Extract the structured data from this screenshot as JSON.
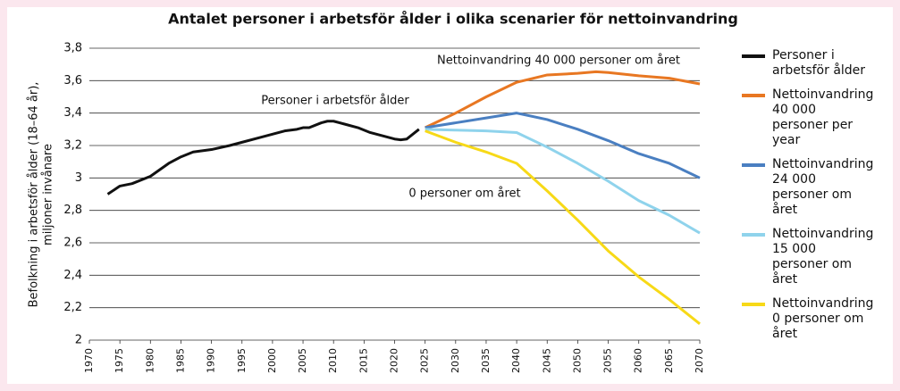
{
  "chart_data": {
    "type": "line",
    "title": "Antalet personer i arbetsför ålder i olika scenarier för nettoinvandring",
    "ylabel": [
      "Befolkning i arbetsför ålder (18–64 år),",
      "miljoner invånare"
    ],
    "annotations": [
      "Personer i arbetsför ålder",
      "Nettoinvandring 40 000 personer om året",
      "0 personer om året"
    ],
    "xlim": [
      1970,
      2070
    ],
    "xticks": [
      1970,
      1975,
      1980,
      1985,
      1990,
      1995,
      2000,
      2005,
      2010,
      2015,
      2020,
      2025,
      2030,
      2035,
      2040,
      2045,
      2050,
      2055,
      2060,
      2065,
      2070
    ],
    "ylim": [
      2,
      3.8
    ],
    "yticks": [
      {
        "value": 2,
        "label": "2"
      },
      {
        "value": 2.2,
        "label": "2,2"
      },
      {
        "value": 2.4,
        "label": "2,4"
      },
      {
        "value": 2.6,
        "label": "2,6"
      },
      {
        "value": 2.8,
        "label": "2,8"
      },
      {
        "value": 3,
        "label": "3"
      },
      {
        "value": 3.2,
        "label": "3,2"
      },
      {
        "value": 3.4,
        "label": "3,4"
      },
      {
        "value": 3.6,
        "label": "3,6"
      },
      {
        "value": 3.8,
        "label": "3,8"
      }
    ],
    "grid": true,
    "legend": "right",
    "series": [
      {
        "name": "Personer i arbetsför ålder",
        "color": "#111111",
        "x": [
          1973,
          1975,
          1977,
          1980,
          1983,
          1985,
          1987,
          1990,
          1993,
          1995,
          1998,
          2000,
          2002,
          2004,
          2005,
          2006,
          2008,
          2009,
          2010,
          2012,
          2014,
          2016,
          2018,
          2020,
          2021,
          2022,
          2024
        ],
        "values": [
          2.9,
          2.95,
          2.965,
          3.01,
          3.09,
          3.13,
          3.16,
          3.175,
          3.2,
          3.22,
          3.25,
          3.27,
          3.29,
          3.3,
          3.31,
          3.31,
          3.34,
          3.35,
          3.35,
          3.33,
          3.31,
          3.28,
          3.26,
          3.24,
          3.235,
          3.24,
          3.3
        ]
      },
      {
        "name": "Nettoinvandring 40 000 personer per year",
        "color": "#e87722",
        "x": [
          2025,
          2030,
          2035,
          2040,
          2045,
          2050,
          2053,
          2055,
          2060,
          2065,
          2070
        ],
        "values": [
          3.31,
          3.4,
          3.5,
          3.59,
          3.635,
          3.645,
          3.655,
          3.65,
          3.63,
          3.615,
          3.58
        ]
      },
      {
        "name": "Nettoinvandring 24 000 personer om året",
        "color": "#4a7fc1",
        "x": [
          2025,
          2030,
          2035,
          2040,
          2045,
          2050,
          2055,
          2060,
          2065,
          2070
        ],
        "values": [
          3.31,
          3.34,
          3.37,
          3.4,
          3.36,
          3.3,
          3.23,
          3.15,
          3.09,
          3.0
        ]
      },
      {
        "name": "Nettoinvandring 15 000 personer om året",
        "color": "#8fd3ec",
        "x": [
          2025,
          2030,
          2035,
          2040,
          2045,
          2050,
          2055,
          2060,
          2065,
          2070
        ],
        "values": [
          3.3,
          3.295,
          3.29,
          3.28,
          3.19,
          3.09,
          2.98,
          2.86,
          2.77,
          2.66
        ]
      },
      {
        "name": "Nettoinvandring 0 personer om året",
        "color": "#f7d917",
        "x": [
          2025,
          2030,
          2035,
          2040,
          2045,
          2050,
          2055,
          2060,
          2065,
          2070
        ],
        "values": [
          3.29,
          3.22,
          3.16,
          3.09,
          2.92,
          2.74,
          2.55,
          2.39,
          2.25,
          2.1
        ]
      }
    ]
  }
}
